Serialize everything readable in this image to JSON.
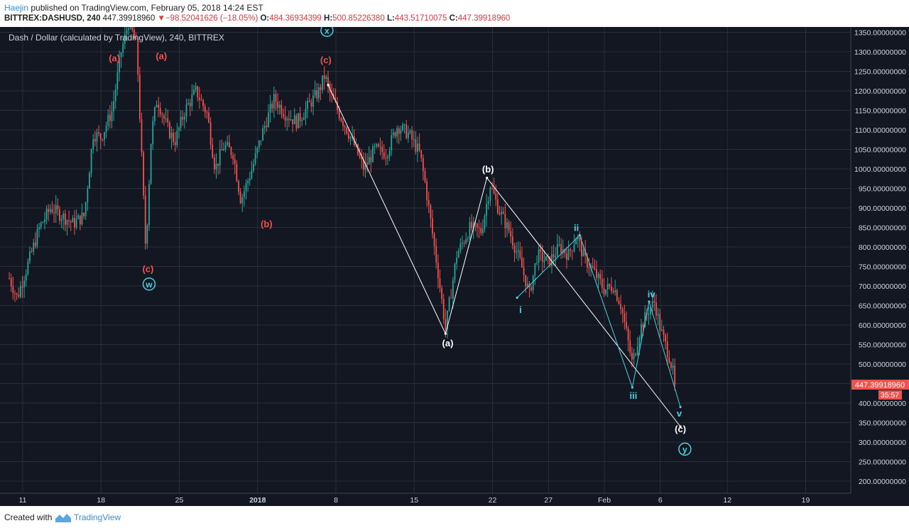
{
  "header": {
    "author": "Haejin",
    "published_text": " published on TradingView.com, February 05, 2018 14:24 EST",
    "symbol": "BITTREX:DASHUSD, 240",
    "price": "447.39918960",
    "change": "−98.52041626 (−18.05%)",
    "o_label": "O:",
    "o_value": "484.36934399",
    "h_label": "H:",
    "h_value": "500.85226380",
    "l_label": "L:",
    "l_value": "443.51710075",
    "c_label": "C:",
    "c_value": "447.39918960"
  },
  "footer": {
    "created_with": "Created with",
    "brand": "TradingView"
  },
  "colors": {
    "background": "#131722",
    "grid": "#2a2e39",
    "up": "#26a69a",
    "down": "#ef5350",
    "wave_red": "#ef5350",
    "wave_cyan": "#4dd0e1",
    "wave_white": "#ffffff",
    "text": "#d1d4dc"
  },
  "chart_data": {
    "type": "candlestick",
    "title": "Dash / Dollar (calculated by TradingView), 240, BITTREX",
    "interval": "240",
    "y_ticks": [
      200,
      250,
      300,
      350,
      400,
      450,
      500,
      550,
      600,
      650,
      700,
      750,
      800,
      850,
      900,
      950,
      1000,
      1050,
      1100,
      1150,
      1200,
      1250,
      1300,
      1350
    ],
    "y_tick_format": "00000000",
    "ylim": [
      170,
      1365
    ],
    "x_ticks": [
      {
        "label": "11",
        "day": 0
      },
      {
        "label": "18",
        "day": 7
      },
      {
        "label": "25",
        "day": 14
      },
      {
        "label": "2018",
        "day": 21
      },
      {
        "label": "8",
        "day": 28
      },
      {
        "label": "15",
        "day": 35
      },
      {
        "label": "22",
        "day": 42
      },
      {
        "label": "27",
        "day": 47
      },
      {
        "label": "Feb",
        "day": 52
      },
      {
        "label": "6",
        "day": 57
      },
      {
        "label": "12",
        "day": 63
      },
      {
        "label": "19",
        "day": 70
      }
    ],
    "x_axis_note": "day index counted from 2017-12-11",
    "last_price_label": "447.39918960",
    "countdown_label": "35:57",
    "price_path": [
      [
        -1.2,
        720
      ],
      [
        -0.5,
        670
      ],
      [
        0.5,
        760
      ],
      [
        1.5,
        850
      ],
      [
        2.5,
        900
      ],
      [
        3.5,
        880
      ],
      [
        4.5,
        860
      ],
      [
        5.5,
        880
      ],
      [
        6.3,
        1090
      ],
      [
        7,
        1080
      ],
      [
        8,
        1150
      ],
      [
        8.8,
        1300
      ],
      [
        9.5,
        1380
      ],
      [
        10.2,
        1310
      ],
      [
        11,
        790
      ],
      [
        11.5,
        1090
      ],
      [
        12,
        1180
      ],
      [
        13,
        1100
      ],
      [
        13.6,
        1070
      ],
      [
        14.5,
        1150
      ],
      [
        15.5,
        1200
      ],
      [
        16.5,
        1140
      ],
      [
        17.2,
        1000
      ],
      [
        18,
        1060
      ],
      [
        18.8,
        1040
      ],
      [
        19.5,
        920
      ],
      [
        20.5,
        1000
      ],
      [
        21.5,
        1100
      ],
      [
        22.5,
        1180
      ],
      [
        23.5,
        1140
      ],
      [
        24.5,
        1120
      ],
      [
        25.5,
        1160
      ],
      [
        26.5,
        1200
      ],
      [
        27,
        1240
      ],
      [
        27.5,
        1190
      ],
      [
        28.5,
        1130
      ],
      [
        29.5,
        1070
      ],
      [
        30.5,
        1000
      ],
      [
        31.5,
        1050
      ],
      [
        32.5,
        1040
      ],
      [
        33.5,
        1110
      ],
      [
        34.5,
        1090
      ],
      [
        35.5,
        1040
      ],
      [
        36,
        960
      ],
      [
        36.7,
        820
      ],
      [
        37.2,
        720
      ],
      [
        37.8,
        590
      ],
      [
        38.8,
        780
      ],
      [
        40,
        850
      ],
      [
        41,
        840
      ],
      [
        41.8,
        960
      ],
      [
        42.5,
        900
      ],
      [
        43.5,
        840
      ],
      [
        44.5,
        760
      ],
      [
        45.3,
        680
      ],
      [
        46,
        780
      ],
      [
        47,
        760
      ],
      [
        48,
        800
      ],
      [
        48.8,
        780
      ],
      [
        49.5,
        830
      ],
      [
        50.2,
        770
      ],
      [
        51,
        740
      ],
      [
        52,
        690
      ],
      [
        52.8,
        700
      ],
      [
        53.5,
        650
      ],
      [
        54.5,
        500
      ],
      [
        55.2,
        590
      ],
      [
        56,
        640
      ],
      [
        56.5,
        660
      ],
      [
        57,
        590
      ],
      [
        57.8,
        520
      ],
      [
        58.4,
        447
      ]
    ],
    "candle_volatility": 35,
    "wave_labels": [
      {
        "text": "(a)",
        "day": 8.2,
        "price": 1285,
        "color": "red"
      },
      {
        "text": "(a)",
        "day": 12.4,
        "price": 1290,
        "color": "red"
      },
      {
        "text": "(c)",
        "day": 11.2,
        "price": 745,
        "color": "red"
      },
      {
        "text": "(b)",
        "day": 21.8,
        "price": 860,
        "color": "red"
      },
      {
        "text": "(c)",
        "day": 27.1,
        "price": 1280,
        "color": "red"
      },
      {
        "text": "(a)",
        "day": 38,
        "price": 555,
        "color": "white"
      },
      {
        "text": "(b)",
        "day": 41.6,
        "price": 1000,
        "color": "white"
      },
      {
        "text": "(c)",
        "day": 58.8,
        "price": 335,
        "color": "white"
      },
      {
        "text": "i",
        "day": 44.5,
        "price": 640,
        "color": "cyan"
      },
      {
        "text": "ii",
        "day": 49.5,
        "price": 850,
        "color": "cyan"
      },
      {
        "text": "iii",
        "day": 54.6,
        "price": 420,
        "color": "cyan"
      },
      {
        "text": "iv",
        "day": 56.2,
        "price": 680,
        "color": "cyan"
      },
      {
        "text": "v",
        "day": 58.7,
        "price": 375,
        "color": "cyan"
      }
    ],
    "circled_labels": [
      {
        "text": "w",
        "day": 11.3,
        "price": 705
      },
      {
        "text": "x",
        "day": 27.2,
        "price": 1355
      },
      {
        "text": "y",
        "day": 59.2,
        "price": 282
      }
    ],
    "wave_lines": [
      {
        "color": "white",
        "points": [
          [
            27.3,
            1215
          ],
          [
            37.8,
            578
          ],
          [
            41.5,
            977
          ],
          [
            58.8,
            340
          ]
        ]
      },
      {
        "color": "cyan",
        "points": [
          [
            44.2,
            670
          ],
          [
            49.8,
            830
          ],
          [
            54.5,
            440
          ],
          [
            56,
            660
          ],
          [
            58.8,
            390
          ]
        ]
      }
    ]
  }
}
